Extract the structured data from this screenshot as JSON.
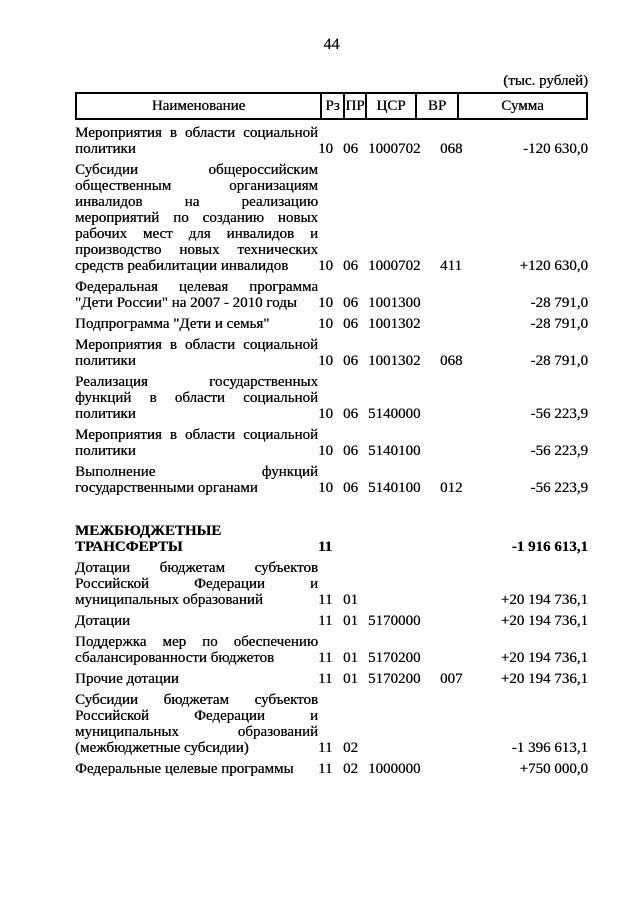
{
  "page": {
    "number": "44",
    "units_label": "(тыс. рублей)"
  },
  "table": {
    "headers": {
      "name": "Наименование",
      "rz": "Рз",
      "pr": "ПР",
      "csr": "ЦСР",
      "vr": "ВР",
      "sum": "Сумма"
    },
    "rows": [
      {
        "name_lines": [
          "Мероприятия в области социальной",
          "политики"
        ],
        "rz": "10",
        "pr": "06",
        "csr": "1000702",
        "vr": "068",
        "sum": "-120 630,0",
        "section_header": false
      },
      {
        "name_lines": [
          "Субсидии общероссийским",
          "общественным организациям",
          "инвалидов на реализацию",
          "мероприятий по созданию новых",
          "рабочих мест для инвалидов и",
          "производство новых технических",
          "средств реабилитации инвалидов"
        ],
        "rz": "10",
        "pr": "06",
        "csr": "1000702",
        "vr": "411",
        "sum": "+120 630,0",
        "section_header": false
      },
      {
        "name_lines": [
          "Федеральная целевая программа",
          "\"Дети России\" на 2007 - 2010 годы"
        ],
        "rz": "10",
        "pr": "06",
        "csr": "1001300",
        "vr": "",
        "sum": "-28 791,0",
        "section_header": false
      },
      {
        "name_lines": [
          "Подпрограмма \"Дети и семья\""
        ],
        "rz": "10",
        "pr": "06",
        "csr": "1001302",
        "vr": "",
        "sum": "-28 791,0",
        "section_header": false
      },
      {
        "name_lines": [
          "Мероприятия в области социальной",
          "политики"
        ],
        "rz": "10",
        "pr": "06",
        "csr": "1001302",
        "vr": "068",
        "sum": "-28 791,0",
        "section_header": false
      },
      {
        "name_lines": [
          "Реализация государственных",
          "функций в области социальной",
          "политики"
        ],
        "rz": "10",
        "pr": "06",
        "csr": "5140000",
        "vr": "",
        "sum": "-56 223,9",
        "section_header": false
      },
      {
        "name_lines": [
          "Мероприятия в области социальной",
          "политики"
        ],
        "rz": "10",
        "pr": "06",
        "csr": "5140100",
        "vr": "",
        "sum": "-56 223,9",
        "section_header": false
      },
      {
        "name_lines": [
          "Выполнение функций",
          "государственными органами"
        ],
        "rz": "10",
        "pr": "06",
        "csr": "5140100",
        "vr": "012",
        "sum": "-56 223,9",
        "section_header": false
      },
      {
        "name_lines": [
          "МЕЖБЮДЖЕТНЫЕ",
          "ТРАНСФЕРТЫ"
        ],
        "rz": "11",
        "pr": "",
        "csr": "",
        "vr": "",
        "sum": "-1 916 613,1",
        "section_header": true
      },
      {
        "name_lines": [
          "Дотации бюджетам субъектов",
          "Российской Федерации и",
          "муниципальных образований"
        ],
        "rz": "11",
        "pr": "01",
        "csr": "",
        "vr": "",
        "sum": "+20 194 736,1",
        "section_header": false
      },
      {
        "name_lines": [
          "Дотации"
        ],
        "rz": "11",
        "pr": "01",
        "csr": "5170000",
        "vr": "",
        "sum": "+20 194 736,1",
        "section_header": false
      },
      {
        "name_lines": [
          "Поддержка мер по обеспечению",
          "сбалансированности бюджетов"
        ],
        "rz": "11",
        "pr": "01",
        "csr": "5170200",
        "vr": "",
        "sum": "+20 194 736,1",
        "section_header": false
      },
      {
        "name_lines": [
          "Прочие дотации"
        ],
        "rz": "11",
        "pr": "01",
        "csr": "5170200",
        "vr": "007",
        "sum": "+20 194 736,1",
        "section_header": false
      },
      {
        "name_lines": [
          "Субсидии бюджетам субъектов",
          "Российской Федерации и",
          "муниципальных образований",
          "(межбюджетные субсидии)"
        ],
        "rz": "11",
        "pr": "02",
        "csr": "",
        "vr": "",
        "sum": "-1 396 613,1",
        "section_header": false
      },
      {
        "name_lines": [
          "Федеральные целевые программы"
        ],
        "rz": "11",
        "pr": "02",
        "csr": "1000000",
        "vr": "",
        "sum": "+750 000,0",
        "section_header": false
      }
    ]
  }
}
